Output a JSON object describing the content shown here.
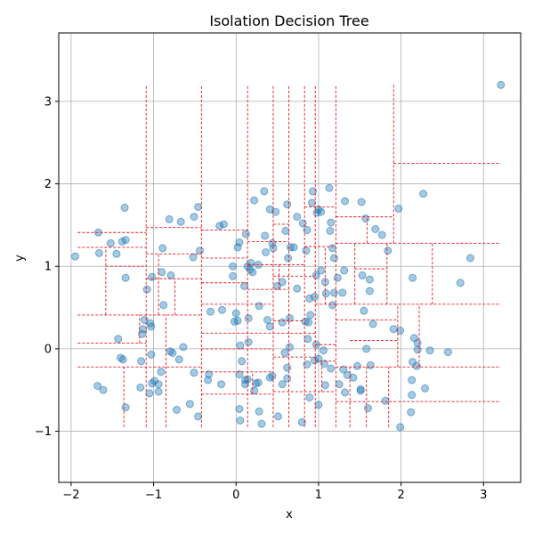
{
  "chart_data": {
    "type": "scatter",
    "title": "Isolation Decision Tree",
    "xlabel": "x",
    "ylabel": "y",
    "xlim": [
      -2.15,
      3.45
    ],
    "ylim": [
      -1.62,
      3.83
    ],
    "xticks": [
      -2,
      -1,
      0,
      1,
      2,
      3
    ],
    "yticks": [
      -1,
      0,
      1,
      2,
      3
    ],
    "grid": true,
    "colors": {
      "points": "#1f77b4",
      "splits": "#e8141c",
      "grid": "#b0b0b0"
    },
    "points": [
      [
        -1.95,
        1.12
      ],
      [
        -1.67,
        1.41
      ],
      [
        -1.66,
        1.16
      ],
      [
        -1.52,
        1.28
      ],
      [
        -1.45,
        1.15
      ],
      [
        -1.38,
        1.3
      ],
      [
        -1.34,
        1.32
      ],
      [
        -1.35,
        1.71
      ],
      [
        -1.34,
        0.86
      ],
      [
        -1.08,
        0.72
      ],
      [
        -1.02,
        0.87
      ],
      [
        -0.89,
        1.22
      ],
      [
        -0.9,
        0.93
      ],
      [
        -0.79,
        0.89
      ],
      [
        -0.81,
        1.57
      ],
      [
        -0.67,
        1.54
      ],
      [
        -0.51,
        1.6
      ],
      [
        -0.46,
        1.72
      ],
      [
        -0.44,
        1.19
      ],
      [
        -0.52,
        1.11
      ],
      [
        -0.2,
        1.49
      ],
      [
        -0.15,
        1.51
      ],
      [
        -0.04,
        1.0
      ],
      [
        -0.04,
        0.88
      ],
      [
        0.02,
        1.23
      ],
      [
        0.04,
        1.29
      ],
      [
        0.12,
        1.39
      ],
      [
        0.14,
        1.0
      ],
      [
        0.17,
        0.96
      ],
      [
        0.18,
        1.04
      ],
      [
        0.2,
        0.93
      ],
      [
        0.27,
        1.02
      ],
      [
        0.35,
        1.37
      ],
      [
        0.36,
        1.17
      ],
      [
        0.1,
        0.76
      ],
      [
        0.34,
        1.91
      ],
      [
        0.22,
        1.8
      ],
      [
        0.41,
        1.69
      ],
      [
        0.48,
        1.66
      ],
      [
        0.44,
        1.28
      ],
      [
        0.45,
        1.22
      ],
      [
        0.6,
        1.43
      ],
      [
        0.62,
        1.75
      ],
      [
        0.63,
        1.1
      ],
      [
        0.66,
        1.23
      ],
      [
        0.7,
        1.23
      ],
      [
        0.74,
        1.6
      ],
      [
        0.81,
        1.52
      ],
      [
        0.86,
        1.44
      ],
      [
        0.85,
        1.19
      ],
      [
        0.93,
        1.91
      ],
      [
        0.92,
        1.77
      ],
      [
        0.98,
        1.65
      ],
      [
        1.0,
        1.69
      ],
      [
        1.03,
        1.66
      ],
      [
        1.13,
        1.95
      ],
      [
        1.15,
        1.53
      ],
      [
        1.14,
        1.43
      ],
      [
        1.17,
        1.22
      ],
      [
        1.19,
        1.1
      ],
      [
        1.32,
        1.79
      ],
      [
        1.52,
        1.78
      ],
      [
        1.57,
        1.58
      ],
      [
        1.69,
        1.45
      ],
      [
        1.77,
        1.38
      ],
      [
        1.84,
        1.19
      ],
      [
        1.97,
        1.7
      ],
      [
        2.27,
        1.88
      ],
      [
        2.84,
        1.1
      ],
      [
        2.72,
        0.8
      ],
      [
        3.21,
        3.2
      ],
      [
        2.14,
        0.86
      ],
      [
        1.62,
        0.84
      ],
      [
        1.53,
        0.89
      ],
      [
        1.62,
        0.7
      ],
      [
        1.31,
        0.95
      ],
      [
        1.23,
        0.86
      ],
      [
        1.29,
        0.68
      ],
      [
        1.19,
        0.68
      ],
      [
        1.09,
        0.67
      ],
      [
        1.08,
        0.81
      ],
      [
        1.03,
        0.95
      ],
      [
        0.97,
        0.89
      ],
      [
        0.89,
        0.61
      ],
      [
        0.95,
        0.63
      ],
      [
        0.74,
        0.73
      ],
      [
        0.56,
        0.81
      ],
      [
        0.5,
        0.76
      ],
      [
        0.28,
        0.52
      ],
      [
        1.17,
        0.53
      ],
      [
        1.55,
        0.46
      ],
      [
        1.66,
        0.3
      ],
      [
        1.91,
        0.24
      ],
      [
        1.99,
        0.22
      ],
      [
        2.16,
        0.13
      ],
      [
        2.2,
        0.07
      ],
      [
        2.2,
        -0.01
      ],
      [
        2.14,
        -0.16
      ],
      [
        2.19,
        -0.21
      ],
      [
        2.35,
        -0.02
      ],
      [
        2.57,
        -0.04
      ],
      [
        2.13,
        -0.38
      ],
      [
        2.13,
        -0.56
      ],
      [
        2.29,
        -0.48
      ],
      [
        2.12,
        -0.77
      ],
      [
        1.99,
        -0.95
      ],
      [
        1.81,
        -0.63
      ],
      [
        1.6,
        -0.72
      ],
      [
        1.63,
        -0.2
      ],
      [
        1.58,
        0.0
      ],
      [
        1.47,
        -0.21
      ],
      [
        1.42,
        -0.35
      ],
      [
        1.51,
        -0.49
      ],
      [
        1.51,
        -0.51
      ],
      [
        1.35,
        -0.32
      ],
      [
        1.32,
        -0.53
      ],
      [
        1.3,
        -0.25
      ],
      [
        1.25,
        -0.43
      ],
      [
        1.15,
        -0.24
      ],
      [
        1.08,
        -0.44
      ],
      [
        1.07,
        -0.18
      ],
      [
        1.0,
        -0.12
      ],
      [
        0.95,
        -0.14
      ],
      [
        1.06,
        -0.02
      ],
      [
        0.97,
        0.05
      ],
      [
        0.87,
        0.12
      ],
      [
        0.86,
        -0.19
      ],
      [
        0.9,
        0.41
      ],
      [
        0.88,
        0.32
      ],
      [
        0.84,
        0.33
      ],
      [
        0.65,
        0.37
      ],
      [
        0.65,
        0.02
      ],
      [
        0.56,
        0.32
      ],
      [
        0.59,
        -0.05
      ],
      [
        0.62,
        -0.23
      ],
      [
        0.62,
        -0.36
      ],
      [
        0.56,
        -0.43
      ],
      [
        0.51,
        -0.82
      ],
      [
        0.8,
        -0.89
      ],
      [
        0.89,
        -0.59
      ],
      [
        1.0,
        -0.68
      ],
      [
        0.44,
        -0.33
      ],
      [
        0.41,
        -0.35
      ],
      [
        0.41,
        0.27
      ],
      [
        0.38,
        0.35
      ],
      [
        0.27,
        -0.41
      ],
      [
        0.24,
        -0.42
      ],
      [
        0.22,
        -0.51
      ],
      [
        0.28,
        -0.76
      ],
      [
        0.31,
        -0.91
      ],
      [
        0.14,
        -0.37
      ],
      [
        0.11,
        -0.38
      ],
      [
        0.11,
        -0.43
      ],
      [
        0.07,
        -0.15
      ],
      [
        0.04,
        -0.31
      ],
      [
        0.04,
        -0.73
      ],
      [
        0.05,
        -0.87
      ],
      [
        0.05,
        0.04
      ],
      [
        0.15,
        0.08
      ],
      [
        0.15,
        0.37
      ],
      [
        0.02,
        0.34
      ],
      [
        0.0,
        0.43
      ],
      [
        -0.02,
        0.33
      ],
      [
        -0.17,
        0.47
      ],
      [
        -0.31,
        0.45
      ],
      [
        -0.33,
        -0.31
      ],
      [
        -0.34,
        -0.38
      ],
      [
        -0.18,
        -0.43
      ],
      [
        -0.51,
        -0.29
      ],
      [
        -0.46,
        -0.82
      ],
      [
        -0.56,
        -0.67
      ],
      [
        -0.72,
        -0.74
      ],
      [
        -0.64,
        0.02
      ],
      [
        -0.69,
        -0.13
      ],
      [
        -0.77,
        -0.05
      ],
      [
        -0.8,
        -0.03
      ],
      [
        -0.91,
        -0.28
      ],
      [
        -0.94,
        -0.43
      ],
      [
        -0.99,
        -0.39
      ],
      [
        -1.02,
        -0.42
      ],
      [
        -0.94,
        -0.52
      ],
      [
        -1.03,
        -0.07
      ],
      [
        -1.05,
        -0.54
      ],
      [
        -1.16,
        -0.47
      ],
      [
        -1.15,
        -0.15
      ],
      [
        -1.34,
        -0.71
      ],
      [
        -1.4,
        -0.11
      ],
      [
        -1.43,
        0.12
      ],
      [
        -1.37,
        -0.13
      ],
      [
        -1.14,
        0.18
      ],
      [
        -1.13,
        0.24
      ],
      [
        -1.11,
        0.35
      ],
      [
        -1.04,
        0.31
      ],
      [
        -1.03,
        0.27
      ],
      [
        -0.88,
        0.53
      ],
      [
        -1.61,
        -0.5
      ],
      [
        -1.68,
        -0.45
      ]
    ],
    "splits": [
      {
        "dir": "v",
        "at": -1.09,
        "from": -0.95,
        "to": 3.2
      },
      {
        "dir": "v",
        "at": -0.42,
        "from": -0.95,
        "to": 3.2
      },
      {
        "dir": "v",
        "at": 0.14,
        "from": -0.95,
        "to": 3.2
      },
      {
        "dir": "v",
        "at": 0.45,
        "from": -0.95,
        "to": 3.2
      },
      {
        "dir": "v",
        "at": 0.64,
        "from": -0.95,
        "to": 3.2
      },
      {
        "dir": "v",
        "at": 0.83,
        "from": -0.95,
        "to": 3.2
      },
      {
        "dir": "v",
        "at": 0.96,
        "from": -0.95,
        "to": 3.2
      },
      {
        "dir": "v",
        "at": 1.21,
        "from": -0.95,
        "to": 3.2
      },
      {
        "dir": "v",
        "at": 1.91,
        "from": 1.28,
        "to": 3.2
      },
      {
        "dir": "h",
        "at": 2.25,
        "from": 1.91,
        "to": 3.21
      },
      {
        "dir": "h",
        "at": 1.28,
        "from": 1.21,
        "to": 3.21
      },
      {
        "dir": "h",
        "at": 0.54,
        "from": 1.21,
        "to": 3.21
      },
      {
        "dir": "h",
        "at": -0.22,
        "from": 1.21,
        "to": 3.21
      },
      {
        "dir": "h",
        "at": -0.64,
        "from": 1.21,
        "to": 3.21
      },
      {
        "dir": "v",
        "at": 2.38,
        "from": 0.54,
        "to": 1.28
      },
      {
        "dir": "v",
        "at": 1.44,
        "from": 0.54,
        "to": 1.28
      },
      {
        "dir": "v",
        "at": 1.59,
        "from": 1.28,
        "to": 1.6
      },
      {
        "dir": "h",
        "at": 1.6,
        "from": 1.21,
        "to": 1.91
      },
      {
        "dir": "v",
        "at": 1.83,
        "from": 0.54,
        "to": 1.28
      },
      {
        "dir": "h",
        "at": 0.97,
        "from": 1.44,
        "to": 1.83
      },
      {
        "dir": "v",
        "at": 2.22,
        "from": -0.22,
        "to": 0.54
      },
      {
        "dir": "v",
        "at": 1.96,
        "from": -0.22,
        "to": 0.54
      },
      {
        "dir": "v",
        "at": 1.85,
        "from": -0.95,
        "to": -0.22
      },
      {
        "dir": "v",
        "at": 1.58,
        "from": -0.95,
        "to": -0.22
      },
      {
        "dir": "v",
        "at": 1.38,
        "from": -0.95,
        "to": -0.22
      },
      {
        "dir": "h",
        "at": 0.1,
        "from": 1.38,
        "to": 1.96
      },
      {
        "dir": "h",
        "at": 0.35,
        "from": 1.21,
        "to": 1.96
      },
      {
        "dir": "h",
        "at": 1.41,
        "from": -1.92,
        "to": -1.09
      },
      {
        "dir": "h",
        "at": 1.23,
        "from": -1.92,
        "to": -1.09
      },
      {
        "dir": "h",
        "at": 1.0,
        "from": -1.58,
        "to": -1.09
      },
      {
        "dir": "v",
        "at": -1.58,
        "from": 0.41,
        "to": 1.23
      },
      {
        "dir": "h",
        "at": 0.41,
        "from": -1.92,
        "to": -0.42
      },
      {
        "dir": "h",
        "at": 0.07,
        "from": -1.92,
        "to": -1.09
      },
      {
        "dir": "h",
        "at": -0.22,
        "from": -1.92,
        "to": -0.42
      },
      {
        "dir": "v",
        "at": -1.36,
        "from": -0.95,
        "to": -0.22
      },
      {
        "dir": "v",
        "at": -1.17,
        "from": 0.07,
        "to": 0.41
      },
      {
        "dir": "v",
        "at": -0.85,
        "from": -0.95,
        "to": 0.41
      },
      {
        "dir": "h",
        "at": 1.47,
        "from": -1.09,
        "to": -0.42
      },
      {
        "dir": "h",
        "at": 1.15,
        "from": -1.09,
        "to": -0.42
      },
      {
        "dir": "h",
        "at": 0.85,
        "from": -1.09,
        "to": -0.42
      },
      {
        "dir": "v",
        "at": -0.74,
        "from": 0.41,
        "to": 0.85
      },
      {
        "dir": "v",
        "at": -0.94,
        "from": 0.41,
        "to": 1.15
      },
      {
        "dir": "h",
        "at": 1.44,
        "from": -0.42,
        "to": 0.14
      },
      {
        "dir": "h",
        "at": 1.1,
        "from": -0.42,
        "to": 0.14
      },
      {
        "dir": "h",
        "at": 0.8,
        "from": -0.42,
        "to": 0.14
      },
      {
        "dir": "h",
        "at": 0.54,
        "from": -0.42,
        "to": 0.45
      },
      {
        "dir": "h",
        "at": 0.19,
        "from": -0.42,
        "to": 0.96
      },
      {
        "dir": "h",
        "at": 0.0,
        "from": -0.42,
        "to": 0.45
      },
      {
        "dir": "h",
        "at": -0.28,
        "from": -0.42,
        "to": 0.45
      },
      {
        "dir": "h",
        "at": -0.55,
        "from": -0.42,
        "to": 0.45
      },
      {
        "dir": "v",
        "at": 0.2,
        "from": -0.55,
        "to": -0.28
      },
      {
        "dir": "h",
        "at": 1.51,
        "from": 0.45,
        "to": 0.64
      },
      {
        "dir": "h",
        "at": 1.3,
        "from": 0.14,
        "to": 0.64
      },
      {
        "dir": "h",
        "at": 1.02,
        "from": 0.14,
        "to": 0.83
      },
      {
        "dir": "v",
        "at": 0.52,
        "from": 0.72,
        "to": 1.02
      },
      {
        "dir": "h",
        "at": 0.88,
        "from": 0.45,
        "to": 0.96
      },
      {
        "dir": "h",
        "at": 0.72,
        "from": 0.14,
        "to": 0.64
      },
      {
        "dir": "h",
        "at": 1.72,
        "from": 0.83,
        "to": 1.21
      },
      {
        "dir": "h",
        "at": 1.24,
        "from": 0.83,
        "to": 1.21
      },
      {
        "dir": "h",
        "at": 0.54,
        "from": 0.96,
        "to": 1.21
      },
      {
        "dir": "v",
        "at": 1.08,
        "from": 0.54,
        "to": 1.24
      },
      {
        "dir": "h",
        "at": 0.34,
        "from": 0.45,
        "to": 0.83
      },
      {
        "dir": "h",
        "at": -0.1,
        "from": 0.45,
        "to": 0.96
      },
      {
        "dir": "h",
        "at": -0.52,
        "from": 0.45,
        "to": 1.21
      },
      {
        "dir": "h",
        "at": -0.15,
        "from": 0.96,
        "to": 1.21
      },
      {
        "dir": "v",
        "at": 1.04,
        "from": -0.52,
        "to": -0.15
      },
      {
        "dir": "h",
        "at": 0.05,
        "from": 0.96,
        "to": 1.21
      }
    ]
  }
}
